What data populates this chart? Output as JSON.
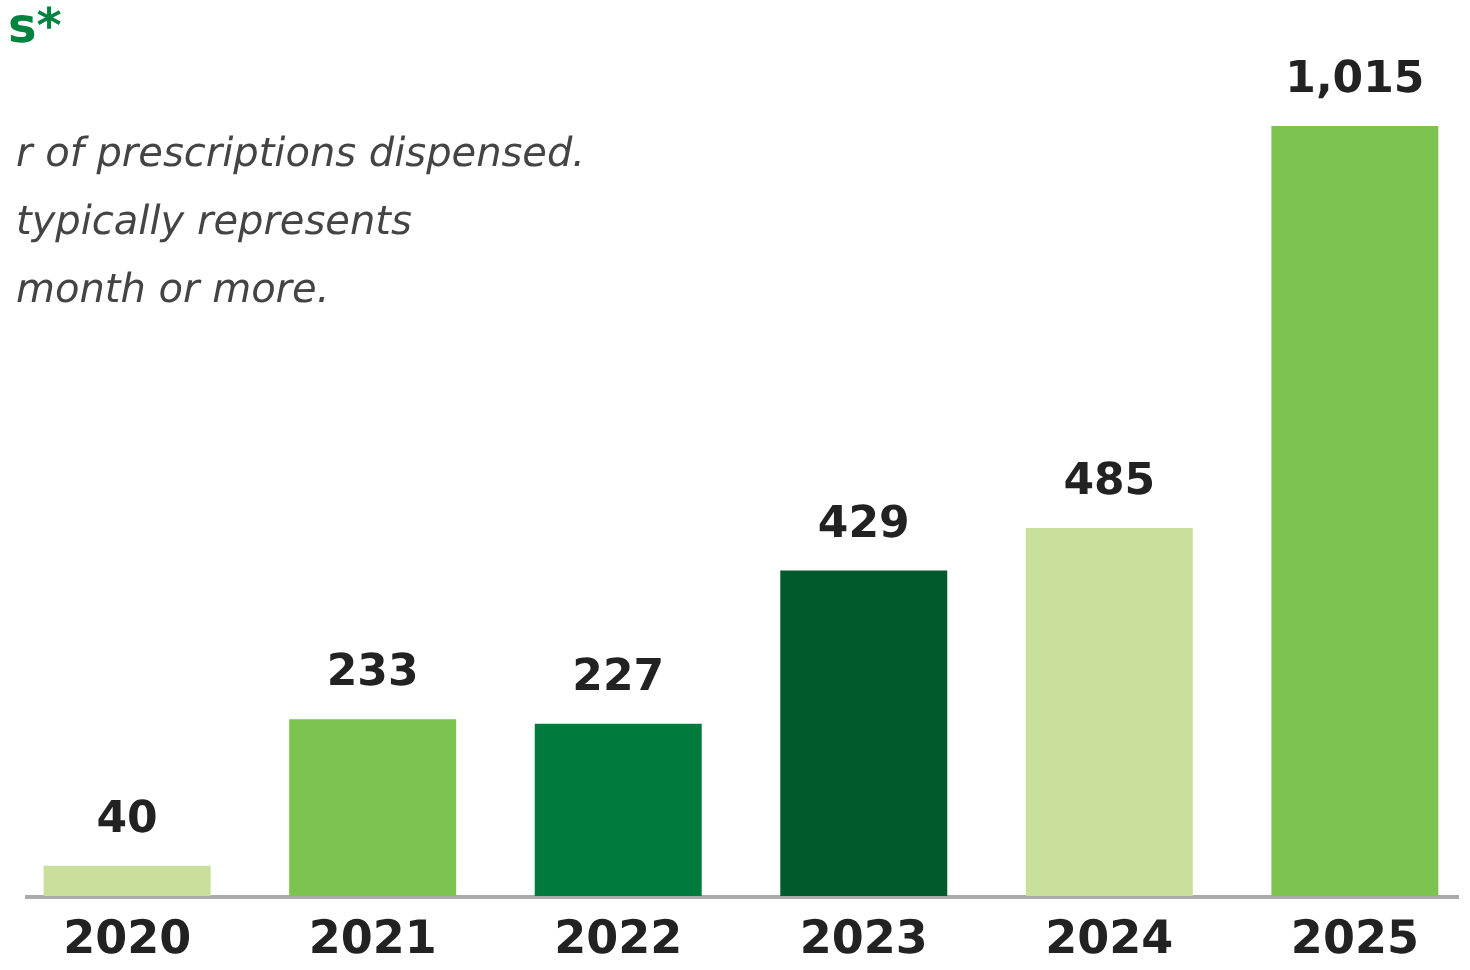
{
  "chart_data": {
    "type": "bar",
    "title": "s*",
    "annotations": [
      "r of prescriptions dispensed.",
      "  typically represents",
      "  month or more."
    ],
    "categories": [
      "2020",
      "2021",
      "2022",
      "2023",
      "2024",
      "2025"
    ],
    "values": [
      40,
      233,
      227,
      429,
      485,
      1015
    ],
    "colors": [
      "#c8e09c",
      "#7cc350",
      "#007a3d",
      "#005a2b",
      "#c8e09c",
      "#7cc350"
    ],
    "value_labels": [
      "40",
      "233",
      "227",
      "429",
      "485",
      "1,015"
    ]
  }
}
